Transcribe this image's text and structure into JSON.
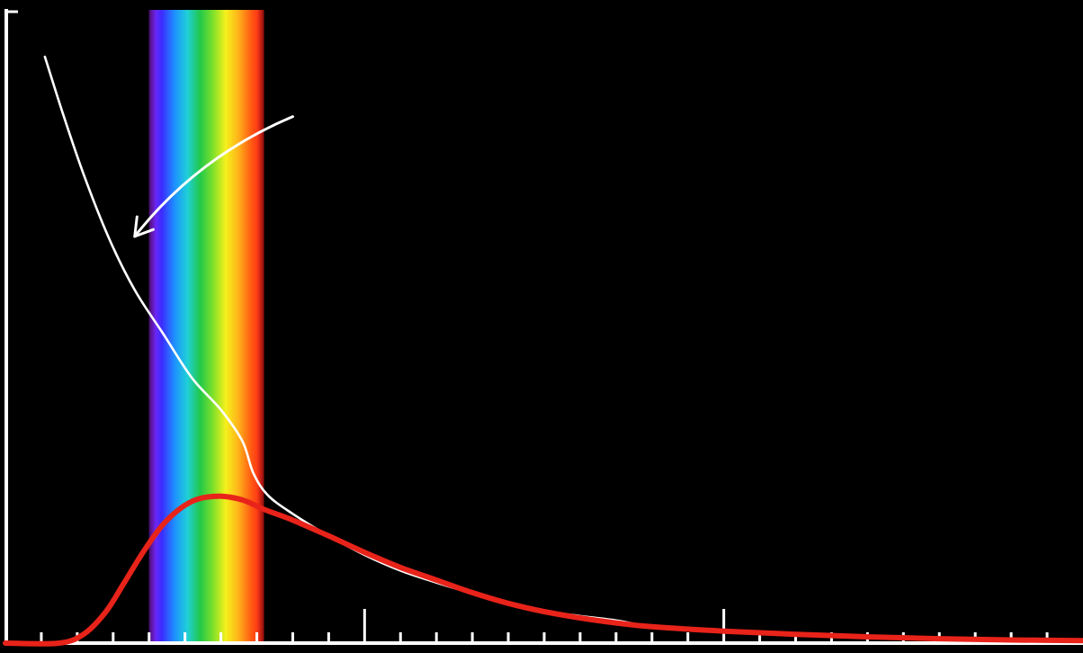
{
  "colors": {
    "background": "#000000",
    "axis": "#ffffff",
    "white_curve": "#ffffff",
    "red_curve": "#e8231a",
    "visible_band": [
      "#a020f0",
      "#3b2cff",
      "#1e90ff",
      "#1fd0d8",
      "#22c84a",
      "#7ee02a",
      "#f5f01c",
      "#ffb21a",
      "#ff5a12",
      "#ff1a1a"
    ]
  },
  "chart_data": {
    "type": "line",
    "title": "",
    "xlabel": "",
    "ylabel": "",
    "xlim": [
      0,
      30
    ],
    "ylim": [
      0,
      100
    ],
    "grid": false,
    "x_ticks_minor": [
      1,
      2,
      3,
      4,
      5,
      6,
      7,
      8,
      9,
      11,
      12,
      13,
      14,
      15,
      16,
      17,
      18,
      19,
      21,
      22,
      23,
      24,
      25,
      26,
      27,
      28,
      29
    ],
    "x_ticks_major": [
      10,
      20
    ],
    "highlight_band": {
      "label": "",
      "x_range": [
        4,
        7.2
      ]
    },
    "series": [
      {
        "style": "thin-white",
        "points": [
          [
            1.1,
            93
          ],
          [
            1.6,
            84
          ],
          [
            2.2,
            74
          ],
          [
            2.9,
            64
          ],
          [
            3.6,
            56
          ],
          [
            4.4,
            49
          ],
          [
            5.2,
            42
          ],
          [
            6.0,
            37
          ],
          [
            6.6,
            32
          ],
          [
            6.9,
            27
          ],
          [
            7.3,
            23.5
          ],
          [
            8.0,
            20.5
          ],
          [
            9.0,
            17
          ],
          [
            10.0,
            14
          ],
          [
            11.0,
            11.5
          ],
          [
            12.0,
            9.6
          ],
          [
            13.0,
            7.9
          ],
          [
            14.0,
            6.4
          ],
          [
            15.0,
            5.1
          ],
          [
            16.0,
            4.3
          ],
          [
            17.0,
            3.6
          ],
          [
            18.0,
            2.6
          ],
          [
            19.4,
            1.9
          ]
        ]
      },
      {
        "style": "thick-red",
        "points": [
          [
            0.0,
            0
          ],
          [
            1.5,
            0
          ],
          [
            2.2,
            1.5
          ],
          [
            2.8,
            5
          ],
          [
            3.3,
            9.5
          ],
          [
            3.9,
            15
          ],
          [
            4.5,
            19.5
          ],
          [
            5.2,
            22.5
          ],
          [
            5.9,
            23.3
          ],
          [
            6.6,
            22.7
          ],
          [
            7.2,
            21.2
          ],
          [
            8.0,
            19.5
          ],
          [
            9.0,
            17
          ],
          [
            10.0,
            14.4
          ],
          [
            11.0,
            12
          ],
          [
            12.0,
            10
          ],
          [
            13.0,
            8
          ],
          [
            14.0,
            6.3
          ],
          [
            15.0,
            5
          ],
          [
            16.0,
            4
          ],
          [
            17.0,
            3.2
          ],
          [
            18.0,
            2.6
          ],
          [
            20.0,
            1.9
          ],
          [
            22.0,
            1.4
          ],
          [
            24.0,
            1.0
          ],
          [
            26.0,
            0.7
          ],
          [
            28.0,
            0.5
          ],
          [
            30.0,
            0.4
          ]
        ]
      }
    ],
    "annotations": [
      {
        "type": "hand-drawn-arrow",
        "from": [
          8,
          83.5
        ],
        "to": [
          3.6,
          64.5
        ]
      }
    ]
  }
}
